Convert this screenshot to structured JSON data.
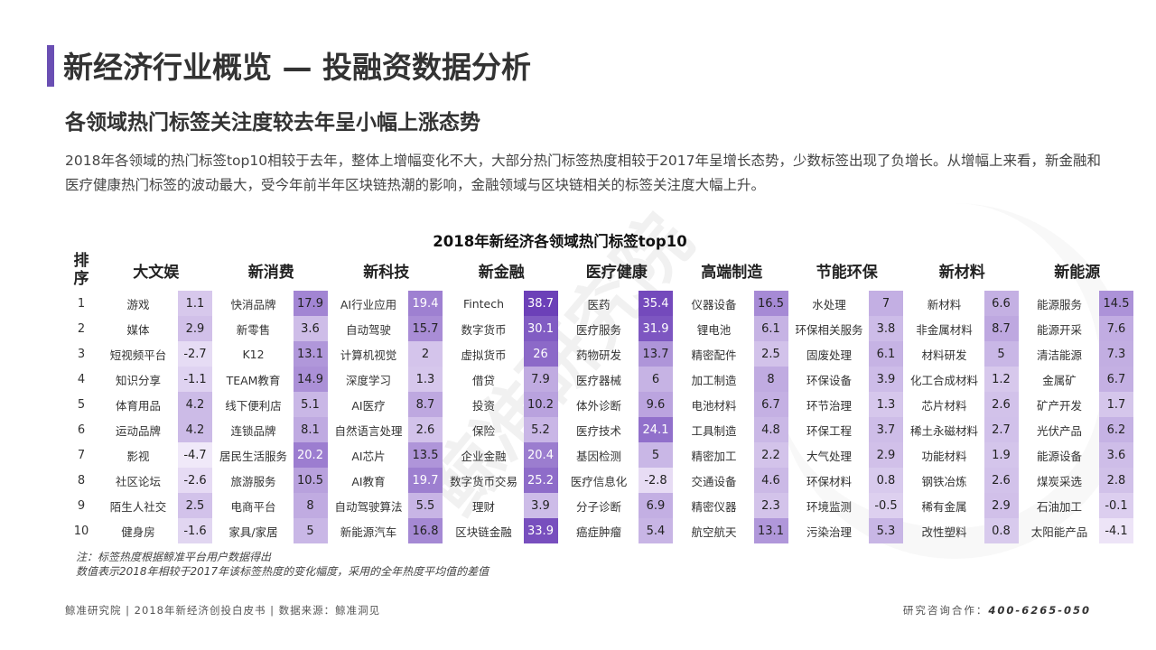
{
  "title": "新经济行业概览 — 投融资数据分析",
  "subtitle": "各领域热门标签关注度较去年呈小幅上涨态势",
  "description": "2018年各领域的热门标签top10相较于去年，整体上增幅变化不大，大部分热门标签热度相较于2017年呈增长态势，少数标签出现了负增长。从增幅上来看，新金融和医疗健康热门标签的波动最大，受今年前半年区块链热潮的影响，金融领域与区块链相关的标签关注度大幅上升。",
  "watermark": "鲸准研究院",
  "table": {
    "title": "2018年新经济各领域热门标签top10",
    "rank_header": [
      "排",
      "序"
    ],
    "domains": [
      "大文娱",
      "新消费",
      "新科技",
      "新金融",
      "医疗健康",
      "高端制造",
      "节能环保",
      "新材料",
      "新能源"
    ],
    "ranks": [
      "1",
      "2",
      "3",
      "4",
      "5",
      "6",
      "7",
      "8",
      "9",
      "10"
    ],
    "rows": [
      [
        [
          "游戏",
          1.1
        ],
        [
          "快消品牌",
          17.9
        ],
        [
          "AI行业应用",
          19.4
        ],
        [
          "Fintech",
          38.7
        ],
        [
          "医药",
          35.4
        ],
        [
          "仪器设备",
          16.5
        ],
        [
          "水处理",
          7
        ],
        [
          "新材料",
          6.6
        ],
        [
          "能源服务",
          14.5
        ]
      ],
      [
        [
          "媒体",
          2.9
        ],
        [
          "新零售",
          3.6
        ],
        [
          "自动驾驶",
          15.7
        ],
        [
          "数字货币",
          30.1
        ],
        [
          "医疗服务",
          31.9
        ],
        [
          "锂电池",
          6.1
        ],
        [
          "环保相关服务",
          3.8
        ],
        [
          "非金属材料",
          8.7
        ],
        [
          "能源开采",
          7.6
        ]
      ],
      [
        [
          "短视频平台",
          -2.7
        ],
        [
          "K12",
          13.1
        ],
        [
          "计算机视觉",
          2
        ],
        [
          "虚拟货币",
          26
        ],
        [
          "药物研发",
          13.7
        ],
        [
          "精密配件",
          2.5
        ],
        [
          "固废处理",
          6.1
        ],
        [
          "材料研发",
          5
        ],
        [
          "清洁能源",
          7.3
        ]
      ],
      [
        [
          "知识分享",
          -1.1
        ],
        [
          "TEAM教育",
          14.9
        ],
        [
          "深度学习",
          1.3
        ],
        [
          "借贷",
          7.9
        ],
        [
          "医疗器械",
          6
        ],
        [
          "加工制造",
          8
        ],
        [
          "环保设备",
          3.9
        ],
        [
          "化工合成材料",
          1.2
        ],
        [
          "金属矿",
          6.7
        ]
      ],
      [
        [
          "体育用品",
          4.2
        ],
        [
          "线下便利店",
          5.1
        ],
        [
          "AI医疗",
          8.7
        ],
        [
          "投资",
          10.2
        ],
        [
          "体外诊断",
          9.6
        ],
        [
          "电池材料",
          6.7
        ],
        [
          "环节治理",
          1.3
        ],
        [
          "芯片材料",
          2.6
        ],
        [
          "矿产开发",
          1.7
        ]
      ],
      [
        [
          "运动品牌",
          4.2
        ],
        [
          "连锁品牌",
          8.1
        ],
        [
          "自然语言处理",
          2.6
        ],
        [
          "保险",
          5.2
        ],
        [
          "医疗技术",
          24.1
        ],
        [
          "工具制造",
          4.8
        ],
        [
          "环保工程",
          3.7
        ],
        [
          "稀土永磁材料",
          2.7
        ],
        [
          "光伏产品",
          6.2
        ]
      ],
      [
        [
          "影视",
          -4.7
        ],
        [
          "居民生活服务",
          20.2
        ],
        [
          "AI芯片",
          13.5
        ],
        [
          "企业金融",
          20.4
        ],
        [
          "基因检测",
          5
        ],
        [
          "精密加工",
          2.2
        ],
        [
          "大气处理",
          2.9
        ],
        [
          "功能材料",
          1.9
        ],
        [
          "能源设备",
          3.6
        ]
      ],
      [
        [
          "社区论坛",
          -2.6
        ],
        [
          "旅游服务",
          10.5
        ],
        [
          "AI教育",
          19.7
        ],
        [
          "数字货币交易",
          25.2
        ],
        [
          "医疗信息化",
          -2.8
        ],
        [
          "交通设备",
          4.6
        ],
        [
          "环保材料",
          0.8
        ],
        [
          "钢铁冶炼",
          2.6
        ],
        [
          "煤炭采选",
          2.8
        ]
      ],
      [
        [
          "陌生人社交",
          2.5
        ],
        [
          "电商平台",
          8
        ],
        [
          "自动驾驶算法",
          5.5
        ],
        [
          "理财",
          3.9
        ],
        [
          "分子诊断",
          6.9
        ],
        [
          "精密仪器",
          2.3
        ],
        [
          "环境监测",
          -0.5
        ],
        [
          "稀有金属",
          2.9
        ],
        [
          "石油加工",
          -0.1
        ]
      ],
      [
        [
          "健身房",
          -1.6
        ],
        [
          "家具/家居",
          5
        ],
        [
          "新能源汽车",
          16.8
        ],
        [
          "区块链金融",
          33.9
        ],
        [
          "癌症肿瘤",
          5.4
        ],
        [
          "航空航天",
          13.1
        ],
        [
          "污染治理",
          5.3
        ],
        [
          "改性塑料",
          0.8
        ],
        [
          "太阳能产品",
          -4.1
        ]
      ]
    ]
  },
  "colors": {
    "accent": "#6a4fb3",
    "heat_low": "#f3ecfa",
    "heat_high": "#6b3fb8"
  },
  "notes": [
    "注：标签热度根据鲸准平台用户数据得出",
    "数值表示2018年相较于2017年该标签热度的变化幅度，采用的全年热度平均值的差值"
  ],
  "footer": {
    "left": "鲸准研究院 | 2018年新经济创投白皮书 | 数据来源：鲸准洞见",
    "right_label": "研究咨询合作：",
    "right_phone": "400-6265-050"
  }
}
